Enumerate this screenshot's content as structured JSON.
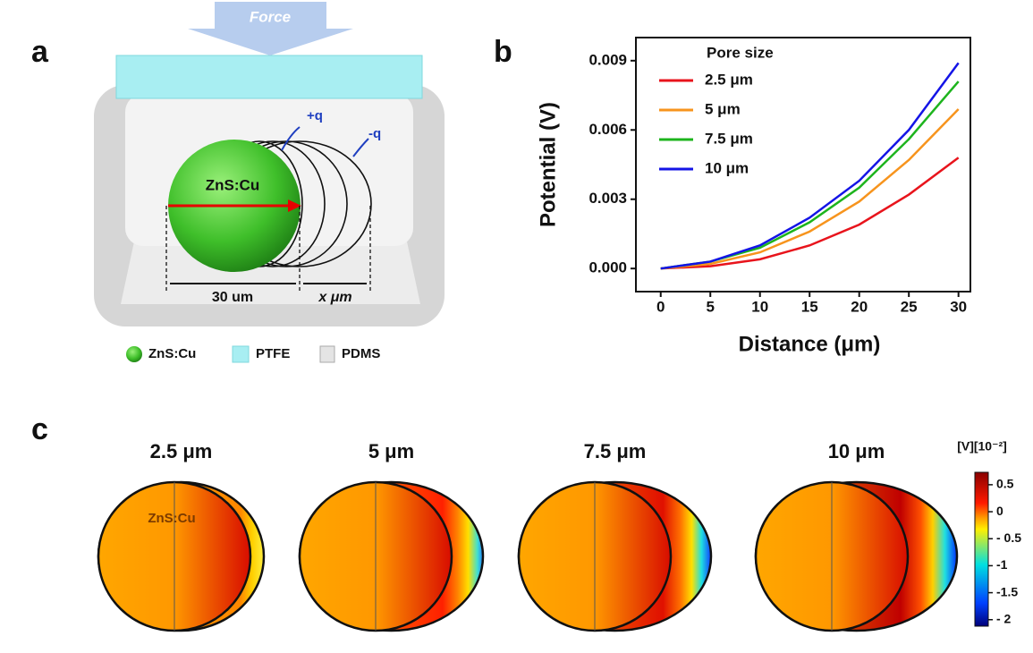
{
  "panel_labels": [
    "a",
    "b",
    "c"
  ],
  "diagram": {
    "force": "Force",
    "sphere": "ZnS:Cu",
    "plus_charge": "+q",
    "minus_charge": "-q",
    "diameter": "30 um",
    "displacement": "x μm",
    "legend": [
      "ZnS:Cu",
      "PTFE",
      "PDMS"
    ]
  },
  "chart_data": {
    "type": "line",
    "x_label": "Distance (μm)",
    "y_label": "Potential (V)",
    "legend_title": "Pore size",
    "x": [
      0,
      5,
      10,
      15,
      20,
      25,
      30
    ],
    "series": [
      {
        "name": "2.5 μm",
        "color": "#e8141c",
        "values": [
          0,
          0.0001,
          0.0004,
          0.001,
          0.0019,
          0.0032,
          0.0048
        ]
      },
      {
        "name": "5 μm",
        "color": "#f7941d",
        "values": [
          0,
          0.0002,
          0.0007,
          0.0016,
          0.0029,
          0.0047,
          0.0069
        ]
      },
      {
        "name": "7.5 μm",
        "color": "#1db41d",
        "values": [
          0,
          0.0003,
          0.0009,
          0.002,
          0.0035,
          0.0056,
          0.0081
        ]
      },
      {
        "name": "10 μm",
        "color": "#1414e6",
        "values": [
          0,
          0.0003,
          0.001,
          0.0022,
          0.0038,
          0.006,
          0.0089
        ]
      }
    ],
    "xlim": [
      -2.5,
      31.2
    ],
    "ylim": [
      -0.001,
      0.01
    ],
    "xticks": [
      0,
      5,
      10,
      15,
      20,
      25,
      30
    ],
    "yticks": [
      {
        "value": 0,
        "label": "0.000"
      },
      {
        "value": 0.003,
        "label": "0.003"
      },
      {
        "value": 0.006,
        "label": "0.006"
      },
      {
        "value": 0.009,
        "label": "0.009"
      }
    ]
  },
  "simulation": {
    "sphere": "ZnS:Cu",
    "panels": [
      {
        "title": "2.5 μm"
      },
      {
        "title": "5 μm"
      },
      {
        "title": "7.5 μm"
      },
      {
        "title": "10 μm"
      }
    ],
    "colorbar": {
      "label": "[V][10⁻²]",
      "lim": [
        -2.12,
        0.73
      ],
      "ticks": [
        0.5,
        0,
        {
          "value": -0.5,
          "label": "- 0.5"
        },
        -1,
        -1.5,
        {
          "value": -2,
          "label": "- 2"
        }
      ]
    }
  }
}
